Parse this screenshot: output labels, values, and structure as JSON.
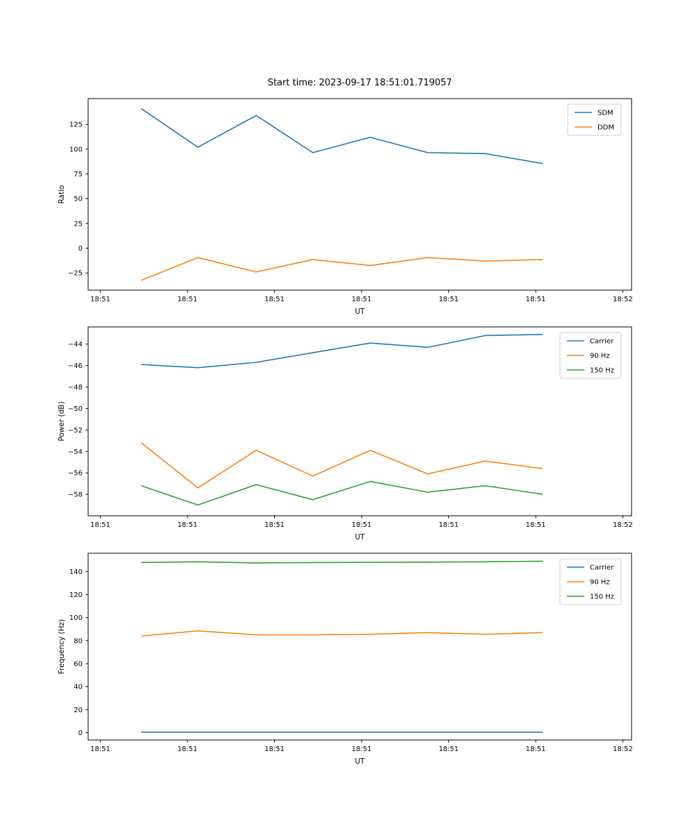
{
  "figure": {
    "title": "Start time: 2023-09-17 18:51:01.719057",
    "background_color": "#ffffff",
    "text_color": "#000000",
    "spine_color": "#000000",
    "legend_edge_color": "#cccccc"
  },
  "colors": {
    "blue": "#1f77b4",
    "orange": "#ff7f0e",
    "green": "#2ca02c"
  },
  "chart_data": [
    {
      "type": "line",
      "title": "",
      "xlabel": "UT",
      "ylabel": "Ratio",
      "xlim": [
        -1.4,
        61.0
      ],
      "ylim": [
        -42.4,
        151.1
      ],
      "grid": false,
      "legend_position": "upper right",
      "x_tick_labels": [
        "18:51",
        "18:51",
        "18:51",
        "18:51",
        "18:51",
        "18:51",
        "18:52"
      ],
      "x_tick_positions_sec": [
        0,
        10,
        20,
        30,
        40,
        50,
        60
      ],
      "y_ticks": [
        -25,
        0,
        25,
        50,
        75,
        100,
        125
      ],
      "x_sec": [
        4.7,
        11.2,
        17.9,
        24.4,
        31.0,
        37.6,
        44.2,
        50.8
      ],
      "series": [
        {
          "name": "SDM",
          "color": "#1f77b4",
          "values": [
            141,
            102,
            134,
            96.5,
            112,
            96.5,
            95.5,
            85.5
          ]
        },
        {
          "name": "DDM",
          "color": "#ff7f0e",
          "values": [
            -32.5,
            -9.5,
            -24,
            -11.5,
            -17.5,
            -9.5,
            -13,
            -11.5
          ]
        }
      ]
    },
    {
      "type": "line",
      "title": "",
      "xlabel": "UT",
      "ylabel": "Power (dB)",
      "xlim": [
        -1.4,
        61.0
      ],
      "ylim": [
        -60.0,
        -42.4
      ],
      "grid": false,
      "legend_position": "upper right",
      "x_tick_labels": [
        "18:51",
        "18:51",
        "18:51",
        "18:51",
        "18:51",
        "18:51",
        "18:52"
      ],
      "x_tick_positions_sec": [
        0,
        10,
        20,
        30,
        40,
        50,
        60
      ],
      "y_ticks": [
        -58,
        -56,
        -54,
        -52,
        -50,
        -48,
        -46,
        -44
      ],
      "x_sec": [
        4.7,
        11.2,
        17.9,
        24.4,
        31.0,
        37.6,
        44.2,
        50.8
      ],
      "series": [
        {
          "name": "Carrier",
          "color": "#1f77b4",
          "values": [
            -45.9,
            -46.2,
            -45.7,
            -44.8,
            -43.9,
            -44.3,
            -43.2,
            -43.1
          ]
        },
        {
          "name": "90 Hz",
          "color": "#ff7f0e",
          "values": [
            -53.2,
            -57.4,
            -53.9,
            -56.3,
            -53.9,
            -56.1,
            -54.9,
            -55.6
          ]
        },
        {
          "name": "150 Hz",
          "color": "#2ca02c",
          "values": [
            -57.2,
            -59.0,
            -57.1,
            -58.5,
            -56.8,
            -57.8,
            -57.2,
            -58.0
          ]
        }
      ]
    },
    {
      "type": "line",
      "title": "",
      "xlabel": "UT",
      "ylabel": "Frequency (Hz)",
      "xlim": [
        -1.4,
        61.0
      ],
      "ylim": [
        -6.3,
        155.9
      ],
      "grid": false,
      "legend_position": "upper right",
      "x_tick_labels": [
        "18:51",
        "18:51",
        "18:51",
        "18:51",
        "18:51",
        "18:51",
        "18:52"
      ],
      "x_tick_positions_sec": [
        0,
        10,
        20,
        30,
        40,
        50,
        60
      ],
      "y_ticks": [
        0,
        20,
        40,
        60,
        80,
        100,
        120,
        140
      ],
      "x_sec": [
        4.7,
        11.2,
        17.9,
        24.4,
        31.0,
        37.6,
        44.2,
        50.8
      ],
      "series": [
        {
          "name": "Carrier",
          "color": "#1f77b4",
          "values": [
            0.5,
            0.5,
            0.5,
            0.5,
            0.5,
            0.5,
            0.5,
            0.5
          ]
        },
        {
          "name": "90 Hz",
          "color": "#ff7f0e",
          "values": [
            84,
            88.5,
            85,
            85,
            85.5,
            87,
            85.5,
            87
          ]
        },
        {
          "name": "150 Hz",
          "color": "#2ca02c",
          "values": [
            147.9,
            148.5,
            147.5,
            147.8,
            148.0,
            148.2,
            148.5,
            149.0
          ]
        }
      ]
    }
  ]
}
